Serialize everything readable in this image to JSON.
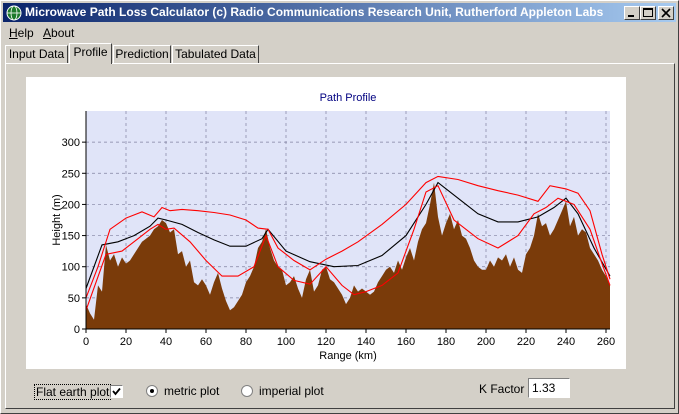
{
  "window": {
    "title": "Microwave Path Loss Calculator  (c) Radio Communications Research Unit, Rutherford Appleton Labs",
    "minimize_icon": "minimize-icon",
    "maximize_icon": "maximize-icon",
    "close_icon": "close-icon"
  },
  "menu": [
    {
      "label": "Help",
      "accel": "H"
    },
    {
      "label": "About",
      "accel": "A"
    }
  ],
  "tabs": [
    {
      "label": "Input Data",
      "active": false
    },
    {
      "label": "Profile",
      "active": true
    },
    {
      "label": "Prediction",
      "active": false
    },
    {
      "label": "Tabulated Data",
      "active": false
    }
  ],
  "controls": {
    "flat_earth_label": "Flat earth plot",
    "flat_earth_checked": true,
    "metric_label": "metric plot",
    "imperial_label": "imperial plot",
    "metric_selected": true,
    "kfactor_label": "K Factor",
    "kfactor_value": "1.33"
  },
  "colors": {
    "terrain": "#7a3b0a",
    "plot_bg": "#e0e4f8",
    "title_color": "#000080",
    "los_line": "#000000",
    "fresnel": "#ff0000"
  },
  "chart_data": {
    "type": "area",
    "title": "Path Profile",
    "xlabel": "Range (km)",
    "ylabel": "Height (m)",
    "xlim": [
      0,
      262
    ],
    "ylim": [
      0,
      350
    ],
    "xticks": [
      0,
      20,
      40,
      60,
      80,
      100,
      120,
      140,
      160,
      180,
      200,
      220,
      240,
      260
    ],
    "yticks": [
      0,
      50,
      100,
      150,
      200,
      250,
      300
    ],
    "grid": true,
    "terrain": {
      "x": [
        0,
        2,
        4,
        6,
        8,
        10,
        12,
        14,
        16,
        18,
        20,
        22,
        24,
        26,
        28,
        30,
        32,
        34,
        36,
        38,
        40,
        42,
        44,
        46,
        48,
        50,
        52,
        54,
        56,
        58,
        60,
        62,
        64,
        66,
        68,
        70,
        72,
        74,
        76,
        78,
        80,
        82,
        84,
        86,
        88,
        90,
        92,
        94,
        96,
        98,
        100,
        102,
        104,
        106,
        108,
        110,
        112,
        114,
        116,
        118,
        120,
        122,
        124,
        126,
        128,
        130,
        132,
        134,
        136,
        138,
        140,
        142,
        144,
        146,
        148,
        150,
        152,
        154,
        156,
        158,
        160,
        162,
        164,
        166,
        168,
        170,
        172,
        174,
        176,
        178,
        180,
        182,
        184,
        186,
        188,
        190,
        192,
        194,
        196,
        198,
        200,
        202,
        204,
        206,
        208,
        210,
        212,
        214,
        216,
        218,
        220,
        222,
        224,
        226,
        228,
        230,
        232,
        234,
        236,
        238,
        240,
        242,
        244,
        246,
        248,
        250,
        252,
        254,
        256,
        258,
        260,
        262
      ],
      "y": [
        40,
        25,
        15,
        70,
        60,
        135,
        110,
        120,
        100,
        115,
        105,
        110,
        120,
        130,
        140,
        145,
        150,
        160,
        165,
        175,
        170,
        155,
        160,
        120,
        125,
        100,
        110,
        75,
        70,
        80,
        70,
        55,
        75,
        90,
        65,
        45,
        30,
        35,
        45,
        55,
        75,
        85,
        100,
        130,
        140,
        160,
        130,
        110,
        100,
        95,
        70,
        75,
        85,
        65,
        50,
        80,
        95,
        60,
        70,
        95,
        100,
        80,
        75,
        65,
        55,
        40,
        50,
        70,
        60,
        65,
        60,
        55,
        60,
        75,
        85,
        95,
        100,
        90,
        110,
        95,
        115,
        130,
        110,
        140,
        160,
        170,
        200,
        235,
        180,
        150,
        170,
        185,
        160,
        175,
        150,
        145,
        130,
        110,
        100,
        95,
        95,
        110,
        100,
        115,
        110,
        120,
        100,
        115,
        95,
        90,
        120,
        130,
        150,
        185,
        165,
        170,
        150,
        160,
        175,
        190,
        205,
        165,
        180,
        150,
        160,
        155,
        130,
        120,
        110,
        95,
        85,
        70
      ]
    },
    "series": [
      {
        "x": [
          0,
          8,
          16,
          24,
          32,
          36,
          40,
          48,
          56,
          64,
          72,
          80,
          88,
          91,
          100,
          112,
          124,
          136,
          148,
          160,
          170,
          176,
          186,
          196,
          206,
          216,
          226,
          234,
          240,
          246,
          254,
          262
        ],
        "y": [
          65,
          135,
          140,
          150,
          165,
          178,
          175,
          168,
          155,
          143,
          133,
          133,
          145,
          160,
          125,
          108,
          100,
          102,
          118,
          150,
          200,
          235,
          210,
          185,
          172,
          172,
          180,
          195,
          210,
          185,
          130,
          85
        ]
      },
      {
        "x": [
          0,
          6,
          12,
          20,
          28,
          34,
          38,
          42,
          48,
          56,
          64,
          72,
          80,
          86,
          91,
          96,
          104,
          112,
          120,
          128,
          136,
          148,
          160,
          170,
          176,
          186,
          196,
          206,
          216,
          226,
          232,
          240,
          246,
          252,
          258,
          262
        ],
        "y": [
          50,
          100,
          160,
          178,
          188,
          180,
          195,
          190,
          192,
          190,
          187,
          183,
          175,
          162,
          160,
          130,
          110,
          95,
          112,
          125,
          140,
          168,
          200,
          235,
          245,
          240,
          230,
          222,
          215,
          205,
          230,
          225,
          218,
          190,
          120,
          80
        ]
      },
      {
        "x": [
          0,
          10,
          18,
          26,
          32,
          36,
          40,
          44,
          52,
          60,
          68,
          76,
          84,
          90,
          96,
          104,
          112,
          120,
          128,
          134,
          140,
          148,
          156,
          164,
          170,
          176,
          184,
          196,
          206,
          216,
          224,
          230,
          236,
          240,
          244,
          252,
          258,
          262
        ],
        "y": [
          30,
          120,
          125,
          145,
          160,
          168,
          160,
          162,
          140,
          110,
          85,
          85,
          100,
          150,
          100,
          78,
          72,
          100,
          70,
          55,
          60,
          70,
          90,
          160,
          220,
          230,
          175,
          145,
          130,
          150,
          185,
          195,
          210,
          205,
          200,
          160,
          105,
          70
        ]
      }
    ]
  }
}
